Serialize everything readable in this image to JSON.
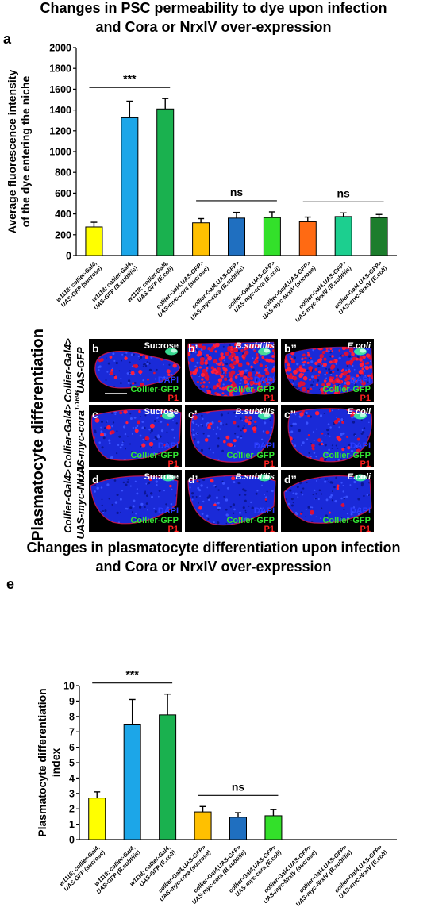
{
  "title_a_line1": "Changes in PSC permeability to dye upon infection",
  "title_a_line2": "and Cora or NrxIV over-expression",
  "panel_a_letter": "a",
  "title_e_line1": "Changes in plasmatocyte differentiation upon infection",
  "title_e_line2": "and Cora or NrxIV over-expression",
  "panel_e_letter": "e",
  "micro": {
    "side_title": "Plasmatocyte differentiation",
    "rows": [
      {
        "genotype_line1": "Collier-Gal4>",
        "genotype_line2": "UAS-GFP",
        "genotype_sup": ""
      },
      {
        "genotype_line1": "Collier-Gal4>",
        "genotype_line2": "UAS-myc-cora",
        "genotype_sup": "1-1698"
      },
      {
        "genotype_line1": "Collier-Gal4>",
        "genotype_line2": "UAS-myc-NrxIV",
        "genotype_sup": ""
      }
    ],
    "panels": [
      {
        "label": "b",
        "condition": "Sucrose"
      },
      {
        "label": "b’",
        "condition": "B.subtilis"
      },
      {
        "label": "b’’",
        "condition": "E.coli"
      },
      {
        "label": "c",
        "condition": "Sucrose"
      },
      {
        "label": "c’",
        "condition": "B.subtilis"
      },
      {
        "label": "c’’",
        "condition": "E.coli"
      },
      {
        "label": "d",
        "condition": "Sucrose"
      },
      {
        "label": "d’",
        "condition": "B.subtilis"
      },
      {
        "label": "d’’",
        "condition": "E.coli"
      }
    ],
    "channels": {
      "dapi": "DAPI",
      "gfp": "Collier-GFP",
      "p1": "P1"
    },
    "colors": {
      "background": "#000000",
      "dapi": "#2b3cff",
      "gfp": "#33e633",
      "p1": "#ff2020"
    }
  },
  "chart_data": [
    {
      "type": "bar",
      "ylabel_line1": "Average fluorescence intensity",
      "ylabel_line2": "of the dye entering the niche",
      "ylim": [
        0,
        2000
      ],
      "yticks": [
        0,
        200,
        400,
        600,
        800,
        1000,
        1200,
        1400,
        1600,
        1800,
        2000
      ],
      "categories": [
        {
          "line1": "w1118; collier-Gal4,",
          "line2": "UAS-GFP (sucrose)"
        },
        {
          "line1": "w1118; collier-Gal4,",
          "line2": "UAS-GFP (B.subtilis)"
        },
        {
          "line1": "w1118; collier-Gal4,",
          "line2": "UAS-GFP (E.coli)"
        },
        {
          "line1": "collier-Gal4,UAS-GFP>",
          "line2": "UAS-myc-cora (sucrose)"
        },
        {
          "line1": "collier-Gal4,UAS-GFP>",
          "line2": "UAS-myc-cora (B.subtilis)"
        },
        {
          "line1": "collier-Gal4,UAS-GFP>",
          "line2": "UAS-myc-cora (E.coli)"
        },
        {
          "line1": "collier-Gal4,UAS-GFP>",
          "line2": "UAS-myc-NrxIV (sucrose)"
        },
        {
          "line1": "collier-Gal4,UAS-GFP>",
          "line2": "UAS-myc-NrxIV (B.subtilis)"
        },
        {
          "line1": "collier-Gal4,UAS-GFP>",
          "line2": "UAS-myc-NrxIV (E.coli)"
        }
      ],
      "values": [
        275,
        1325,
        1410,
        315,
        360,
        365,
        325,
        375,
        365
      ],
      "errors": [
        45,
        160,
        100,
        40,
        55,
        55,
        45,
        35,
        30
      ],
      "colors": [
        "#ffff00",
        "#1ca6e8",
        "#1ab14f",
        "#ffc000",
        "#1f6fc0",
        "#33e02a",
        "#ff6a13",
        "#1ccf8f",
        "#1c7d2c"
      ],
      "significance": [
        {
          "text": "***",
          "from": 0,
          "to": 2
        },
        {
          "text": "ns",
          "from": 3,
          "to": 5
        },
        {
          "text": "ns",
          "from": 6,
          "to": 8
        }
      ]
    },
    {
      "type": "bar",
      "ylabel_line1": "Plasmatocyte differentiation",
      "ylabel_line2": "index",
      "ylim": [
        0,
        10
      ],
      "yticks": [
        0,
        1,
        2,
        3,
        4,
        5,
        6,
        7,
        8,
        9,
        10
      ],
      "categories": [
        {
          "line1": "w1118; collier-Gal4,",
          "line2": "UAS-GFP (sucrose)"
        },
        {
          "line1": "w1118; collier-Gal4,",
          "line2": "UAS-GFP (B.subtilis)"
        },
        {
          "line1": "w1118; collier-Gal4,",
          "line2": "UAS-GFP (E.coli)"
        },
        {
          "line1": "collier-Gal4,UAS-GFP>",
          "line2": "UAS-myc-cora (sucrose)"
        },
        {
          "line1": "collier-Gal4,UAS-GFP>",
          "line2": "UAS-myc-cora (B.subtilis)"
        },
        {
          "line1": "collier-Gal4,UAS-GFP>",
          "line2": "UAS-myc-cora (E.coli)"
        },
        {
          "line1": "collier-Gal4,UAS-GFP>",
          "line2": "UAS-myc-NrxIV (sucrose)"
        },
        {
          "line1": "collier-Gal4,UAS-GFP>",
          "line2": "UAS-myc-NrxIV (B.subtilis)"
        },
        {
          "line1": "collier-Gal4,UAS-GFP>",
          "line2": "UAS-myc-NrxIV (E.coli)"
        }
      ],
      "values": [
        2.7,
        7.5,
        8.1,
        1.8,
        1.45,
        1.55,
        0,
        0,
        0
      ],
      "errors": [
        0.4,
        1.6,
        1.35,
        0.35,
        0.3,
        0.4,
        0,
        0,
        0
      ],
      "colors": [
        "#ffff00",
        "#1ca6e8",
        "#1ab14f",
        "#ffc000",
        "#1f6fc0",
        "#33e02a",
        "#ff6a13",
        "#1ccf8f",
        "#1c7d2c"
      ],
      "significance": [
        {
          "text": "***",
          "from": 0,
          "to": 2
        },
        {
          "text": "ns",
          "from": 3,
          "to": 5
        }
      ]
    }
  ]
}
